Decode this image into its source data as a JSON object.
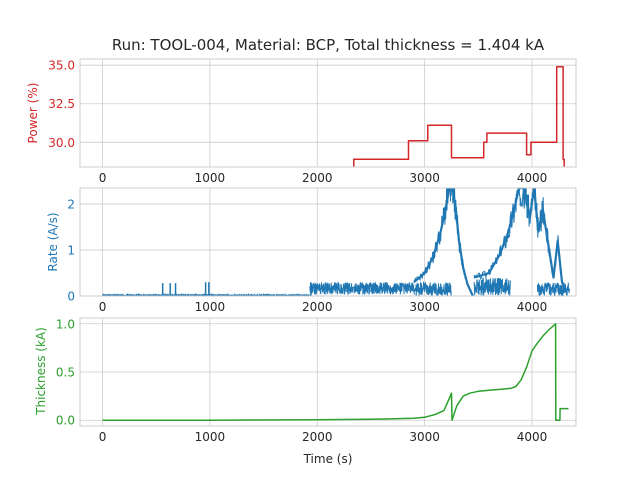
{
  "title": "Run: TOOL-004, Material: BCP, Total thickness = 1.404 kA",
  "xlabel": "Time (s)",
  "colors": {
    "power": "#d62728",
    "rate": "#1f77b4",
    "thickness": "#2ca02c",
    "grid": "#cccccc",
    "text": "#262626"
  },
  "chart_data": [
    {
      "type": "line",
      "ylabel": "Power (%)",
      "color": "#d62728",
      "xlim": [
        -210,
        4410
      ],
      "ylim": [
        28.4,
        35.4
      ],
      "xticks": [
        0,
        1000,
        2000,
        3000,
        4000
      ],
      "xtick_labels": [
        "0",
        "1000",
        "2000",
        "3000",
        "4000"
      ],
      "yticks": [
        30.0,
        32.5,
        35.0
      ],
      "ytick_labels": [
        "30.0",
        "32.5",
        "35.0"
      ],
      "grid": true,
      "series": [
        {
          "x": [
            2340,
            2340,
            2850,
            2850,
            3030,
            3030,
            3250,
            3250,
            3550,
            3550,
            3580,
            3580,
            3950,
            3950,
            3990,
            3990,
            4230,
            4230,
            4290,
            4290,
            4300,
            4300
          ],
          "y": [
            28.4,
            28.9,
            28.9,
            30.1,
            30.1,
            31.1,
            31.1,
            29.0,
            29.0,
            30.0,
            30.0,
            30.6,
            30.6,
            29.2,
            29.2,
            30.0,
            30.0,
            34.9,
            34.9,
            28.9,
            28.9,
            28.4
          ]
        }
      ]
    },
    {
      "type": "line",
      "ylabel": "Rate (A/s)",
      "color": "#1f77b4",
      "xlim": [
        -210,
        4410
      ],
      "ylim": [
        0,
        2.35
      ],
      "xticks": [
        0,
        1000,
        2000,
        3000,
        4000
      ],
      "xtick_labels": [
        "0",
        "1000",
        "2000",
        "3000",
        "4000"
      ],
      "yticks": [
        0,
        1,
        2
      ],
      "ytick_labels": [
        "0",
        "1",
        "2"
      ],
      "grid": true,
      "noise_bands": [
        {
          "x": [
            0,
            1930
          ],
          "low": 0.0,
          "high": 0.03
        },
        {
          "x": [
            1930,
            2900
          ],
          "low": 0.03,
          "high": 0.3
        },
        {
          "x": [
            2900,
            3250
          ],
          "low": 0.0,
          "high": 0.3
        },
        {
          "x": [
            3460,
            3800
          ],
          "low": 0.0,
          "high": 0.4
        },
        {
          "x": [
            4050,
            4350
          ],
          "low": 0.0,
          "high": 0.3
        }
      ],
      "spikes": [
        {
          "x": 560,
          "y": 0.28
        },
        {
          "x": 630,
          "y": 0.28
        },
        {
          "x": 680,
          "y": 0.28
        },
        {
          "x": 960,
          "y": 0.3
        },
        {
          "x": 990,
          "y": 0.3
        },
        {
          "x": 1940,
          "y": 0.3
        }
      ],
      "series": [
        {
          "x": [
            2900,
            3000,
            3080,
            3150,
            3200,
            3230,
            3260,
            3290,
            3320,
            3360,
            3400,
            3450
          ],
          "y": [
            0.3,
            0.5,
            0.85,
            1.4,
            1.95,
            2.35,
            2.35,
            1.9,
            1.2,
            0.6,
            0.25,
            0.0
          ]
        },
        {
          "x": [
            3460,
            3600,
            3700,
            3780,
            3840,
            3880,
            3920,
            3950,
            3980,
            4020,
            4060,
            4100,
            4160,
            4200,
            4240,
            4280,
            4320
          ],
          "y": [
            0.4,
            0.5,
            0.9,
            1.4,
            1.95,
            2.35,
            2.35,
            2.1,
            1.7,
            2.35,
            1.4,
            1.9,
            1.0,
            0.4,
            1.2,
            0.3,
            0.1
          ]
        }
      ]
    },
    {
      "type": "line",
      "ylabel": "Thickness (kA)",
      "color": "#2ca02c",
      "xlim": [
        -210,
        4410
      ],
      "ylim": [
        -0.06,
        1.06
      ],
      "xticks": [
        0,
        1000,
        2000,
        3000,
        4000
      ],
      "xtick_labels": [
        "0",
        "1000",
        "2000",
        "3000",
        "4000"
      ],
      "yticks": [
        0.0,
        0.5,
        1.0
      ],
      "ytick_labels": [
        "0.0",
        "0.5",
        "1.0"
      ],
      "grid": true,
      "series": [
        {
          "x": [
            0,
            1000,
            2000,
            2500,
            2900,
            3000,
            3100,
            3180,
            3220,
            3250,
            3255,
            3300,
            3360,
            3420,
            3500,
            3600,
            3700,
            3800,
            3850,
            3900,
            3950,
            4000,
            4050,
            4100,
            4150,
            4200,
            4220,
            4222,
            4240,
            4260,
            4262,
            4340
          ],
          "y": [
            0,
            0,
            0.005,
            0.01,
            0.02,
            0.03,
            0.06,
            0.1,
            0.2,
            0.28,
            0.0,
            0.15,
            0.25,
            0.28,
            0.3,
            0.31,
            0.32,
            0.33,
            0.35,
            0.42,
            0.55,
            0.72,
            0.8,
            0.87,
            0.93,
            0.98,
            1.0,
            0.0,
            0.0,
            0.0,
            0.12,
            0.12
          ]
        }
      ]
    }
  ]
}
